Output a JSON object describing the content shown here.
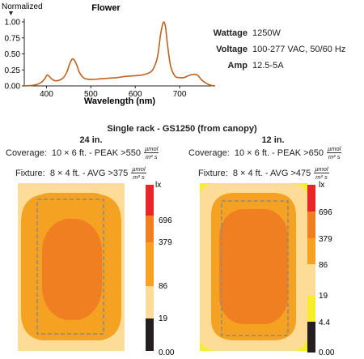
{
  "spectrum": {
    "y_axis_label": "Normalized",
    "title": "Flower",
    "x_axis_label": "Wavelength (nm)",
    "y_ticks": [
      "1.00",
      "0.75",
      "0.50",
      "0.25",
      "0.00"
    ],
    "x_ticks": [
      "400",
      "500",
      "600",
      "700"
    ],
    "line_color": "#c1621b"
  },
  "specs": [
    {
      "label": "Wattage",
      "value": "1250W"
    },
    {
      "label": "Voltage",
      "value": "100-277 VAC, 50/60 Hz"
    },
    {
      "label": "Amp",
      "value": "12.5-5A"
    }
  ],
  "rack_title": "Single rack - GS1250 (from canopy)",
  "unit": {
    "num": "µmol",
    "den": "m² s"
  },
  "panels": [
    {
      "height": "24 in.",
      "coverage_label": "Coverage:",
      "coverage_text": "10 × 6 ft. - PEAK >550",
      "fixture_label": "Fixture:",
      "fixture_text": "8 × 4 ft. - AVG >375",
      "scale_unit": "lx",
      "scale_ticks": [
        "696",
        "379",
        "86",
        "19",
        "0.00"
      ]
    },
    {
      "height": "12 in.",
      "coverage_label": "Coverage:",
      "coverage_text": "10 × 6 ft. - PEAK >650",
      "fixture_label": "Fixture:",
      "fixture_text": "8 × 4 ft. - AVG >475",
      "scale_unit": "lx",
      "scale_ticks": [
        "696",
        "379",
        "86",
        "19",
        "4.4",
        "0.00"
      ]
    }
  ],
  "colors": {
    "red": "#e8262a",
    "dark_orange": "#f07f22",
    "orange": "#f5a122",
    "light": "#fcdc97",
    "yellow": "#f6ee2d",
    "black": "#231f20",
    "dashed": "#8a8a8a"
  },
  "chart_data": {
    "type": "line",
    "title": "Flower",
    "xlabel": "Wavelength (nm)",
    "ylabel": "Normalized",
    "xlim": [
      350,
      780
    ],
    "ylim": [
      0,
      1
    ],
    "x": [
      350,
      370,
      385,
      395,
      402,
      410,
      420,
      435,
      445,
      452,
      458,
      463,
      468,
      475,
      485,
      500,
      520,
      540,
      560,
      580,
      600,
      615,
      630,
      640,
      650,
      657,
      663,
      668,
      673,
      680,
      690,
      700,
      710,
      720,
      730,
      740,
      745,
      750,
      760,
      770,
      780
    ],
    "y": [
      0.0,
      0.01,
      0.04,
      0.1,
      0.17,
      0.12,
      0.08,
      0.11,
      0.2,
      0.34,
      0.42,
      0.4,
      0.33,
      0.2,
      0.12,
      0.1,
      0.11,
      0.12,
      0.13,
      0.15,
      0.16,
      0.17,
      0.2,
      0.26,
      0.45,
      0.8,
      0.99,
      0.93,
      0.62,
      0.3,
      0.15,
      0.13,
      0.13,
      0.16,
      0.18,
      0.17,
      0.13,
      0.09,
      0.04,
      0.01,
      0.0
    ],
    "grid": false
  }
}
